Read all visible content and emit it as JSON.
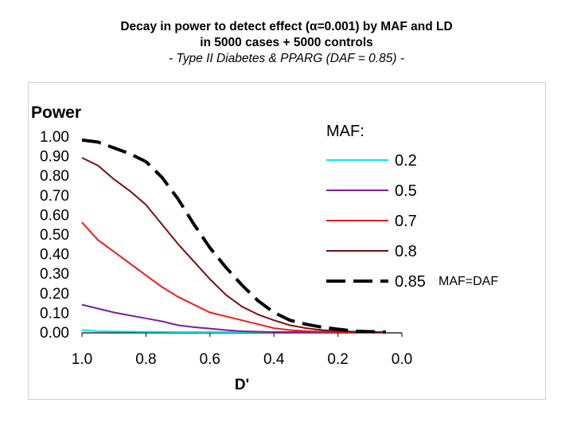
{
  "header": {
    "title_line1": "Decay in power to detect effect (α=0.001) by MAF and LD",
    "title_line2": "in 5000 cases + 5000 controls",
    "subtitle": "- Type II Diabetes & PPARG (DAF = 0.85) -"
  },
  "chart_data": {
    "type": "line",
    "ylabel": "Power",
    "xlabel": "D'",
    "xlim": [
      1.0,
      0.0
    ],
    "ylim": [
      0.0,
      1.0
    ],
    "x_ticks": [
      "1.0",
      "0.8",
      "0.6",
      "0.4",
      "0.2",
      "0.0"
    ],
    "y_ticks": [
      "0.00",
      "0.10",
      "0.20",
      "0.30",
      "0.40",
      "0.50",
      "0.60",
      "0.70",
      "0.80",
      "0.90",
      "1.00"
    ],
    "grid": false,
    "legend_title": "MAF:",
    "legend_position": "right",
    "annotation": "MAF=DAF",
    "x": [
      1.0,
      0.95,
      0.9,
      0.85,
      0.8,
      0.75,
      0.7,
      0.65,
      0.6,
      0.55,
      0.5,
      0.45,
      0.4,
      0.35,
      0.3,
      0.25,
      0.2,
      0.15,
      0.1,
      0.05
    ],
    "series": [
      {
        "name": "0.2",
        "color": "#00e5ee",
        "dash": false,
        "values": [
          0.01,
          0.005,
          0.003,
          0.002,
          0.001,
          0.001,
          0.0,
          0.0,
          0.0,
          0.0,
          0.0,
          0.0,
          0.0,
          0.0,
          0.0,
          0.0,
          0.0,
          0.0,
          0.0,
          0.0
        ]
      },
      {
        "name": "0.5",
        "color": "#7b1fa2",
        "dash": false,
        "values": [
          0.14,
          0.12,
          0.1,
          0.085,
          0.07,
          0.055,
          0.035,
          0.025,
          0.018,
          0.01,
          0.004,
          0.002,
          0.0,
          0.0,
          0.0,
          0.0,
          0.0,
          0.0,
          0.0,
          0.0
        ]
      },
      {
        "name": "0.7",
        "color": "#ee1c1c",
        "dash": false,
        "values": [
          0.56,
          0.47,
          0.41,
          0.35,
          0.29,
          0.23,
          0.18,
          0.14,
          0.1,
          0.08,
          0.06,
          0.04,
          0.02,
          0.01,
          0.005,
          0.002,
          0.0,
          0.0,
          0.0,
          0.0
        ]
      },
      {
        "name": "0.8",
        "color": "#7a0f0f",
        "dash": false,
        "values": [
          0.89,
          0.85,
          0.78,
          0.72,
          0.65,
          0.55,
          0.45,
          0.36,
          0.27,
          0.19,
          0.13,
          0.09,
          0.06,
          0.035,
          0.02,
          0.01,
          0.005,
          0.002,
          0.0,
          0.0
        ]
      },
      {
        "name": "0.85",
        "color": "#000000",
        "dash": true,
        "values": [
          0.98,
          0.97,
          0.94,
          0.91,
          0.87,
          0.79,
          0.68,
          0.55,
          0.43,
          0.33,
          0.24,
          0.16,
          0.1,
          0.06,
          0.04,
          0.025,
          0.015,
          0.005,
          0.002,
          0.0
        ]
      }
    ]
  }
}
